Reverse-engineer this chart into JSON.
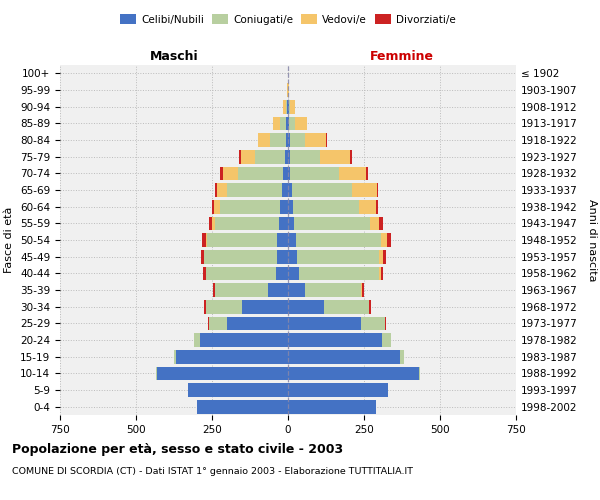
{
  "age_groups": [
    "0-4",
    "5-9",
    "10-14",
    "15-19",
    "20-24",
    "25-29",
    "30-34",
    "35-39",
    "40-44",
    "45-49",
    "50-54",
    "55-59",
    "60-64",
    "65-69",
    "70-74",
    "75-79",
    "80-84",
    "85-89",
    "90-94",
    "95-99",
    "100+"
  ],
  "birth_years": [
    "1998-2002",
    "1993-1997",
    "1988-1992",
    "1983-1987",
    "1978-1982",
    "1973-1977",
    "1968-1972",
    "1963-1967",
    "1958-1962",
    "1953-1957",
    "1948-1952",
    "1943-1947",
    "1938-1942",
    "1933-1937",
    "1928-1932",
    "1923-1927",
    "1918-1922",
    "1913-1917",
    "1908-1912",
    "1903-1907",
    "≤ 1902"
  ],
  "colors": {
    "celibe": "#4472c4",
    "coniugato": "#b8cfa0",
    "vedovo": "#f5c56a",
    "divorziato": "#cc2222"
  },
  "males": {
    "celibe": [
      300,
      330,
      430,
      370,
      290,
      200,
      150,
      65,
      40,
      35,
      35,
      30,
      25,
      20,
      15,
      10,
      8,
      5,
      2,
      0,
      0
    ],
    "coniugato": [
      0,
      0,
      5,
      5,
      20,
      60,
      120,
      175,
      230,
      240,
      230,
      210,
      200,
      180,
      150,
      100,
      50,
      20,
      5,
      0,
      0
    ],
    "vedovo": [
      0,
      0,
      0,
      0,
      0,
      0,
      0,
      0,
      0,
      2,
      5,
      10,
      20,
      35,
      50,
      45,
      40,
      25,
      10,
      2,
      0
    ],
    "divorziato": [
      0,
      0,
      0,
      0,
      0,
      3,
      5,
      8,
      8,
      10,
      12,
      10,
      5,
      5,
      8,
      5,
      2,
      0,
      0,
      0,
      0
    ]
  },
  "females": {
    "nubile": [
      290,
      330,
      430,
      370,
      310,
      240,
      120,
      55,
      35,
      30,
      25,
      20,
      15,
      12,
      8,
      5,
      5,
      3,
      2,
      0,
      0
    ],
    "coniugata": [
      0,
      0,
      5,
      10,
      30,
      80,
      145,
      185,
      265,
      270,
      280,
      250,
      220,
      200,
      160,
      100,
      50,
      20,
      5,
      0,
      0
    ],
    "vedova": [
      0,
      0,
      0,
      0,
      0,
      0,
      2,
      2,
      5,
      12,
      20,
      30,
      55,
      80,
      90,
      100,
      70,
      40,
      15,
      2,
      0
    ],
    "divorziata": [
      0,
      0,
      0,
      0,
      0,
      3,
      5,
      8,
      8,
      12,
      15,
      12,
      5,
      5,
      5,
      5,
      2,
      0,
      0,
      0,
      0
    ]
  },
  "xlim": 750,
  "title": "Popolazione per età, sesso e stato civile - 2003",
  "subtitle": "COMUNE DI SCORDIA (CT) - Dati ISTAT 1° gennaio 2003 - Elaborazione TUTTITALIA.IT",
  "xlabel_left": "Maschi",
  "xlabel_right": "Femmine",
  "ylabel_left": "Fasce di età",
  "ylabel_right": "Anni di nascita",
  "legend_labels": [
    "Celibi/Nubili",
    "Coniugati/e",
    "Vedovi/e",
    "Divorziati/e"
  ],
  "background_color": "#ffffff",
  "grid_color": "#cccccc",
  "plot_bg": "#f0f0f0"
}
